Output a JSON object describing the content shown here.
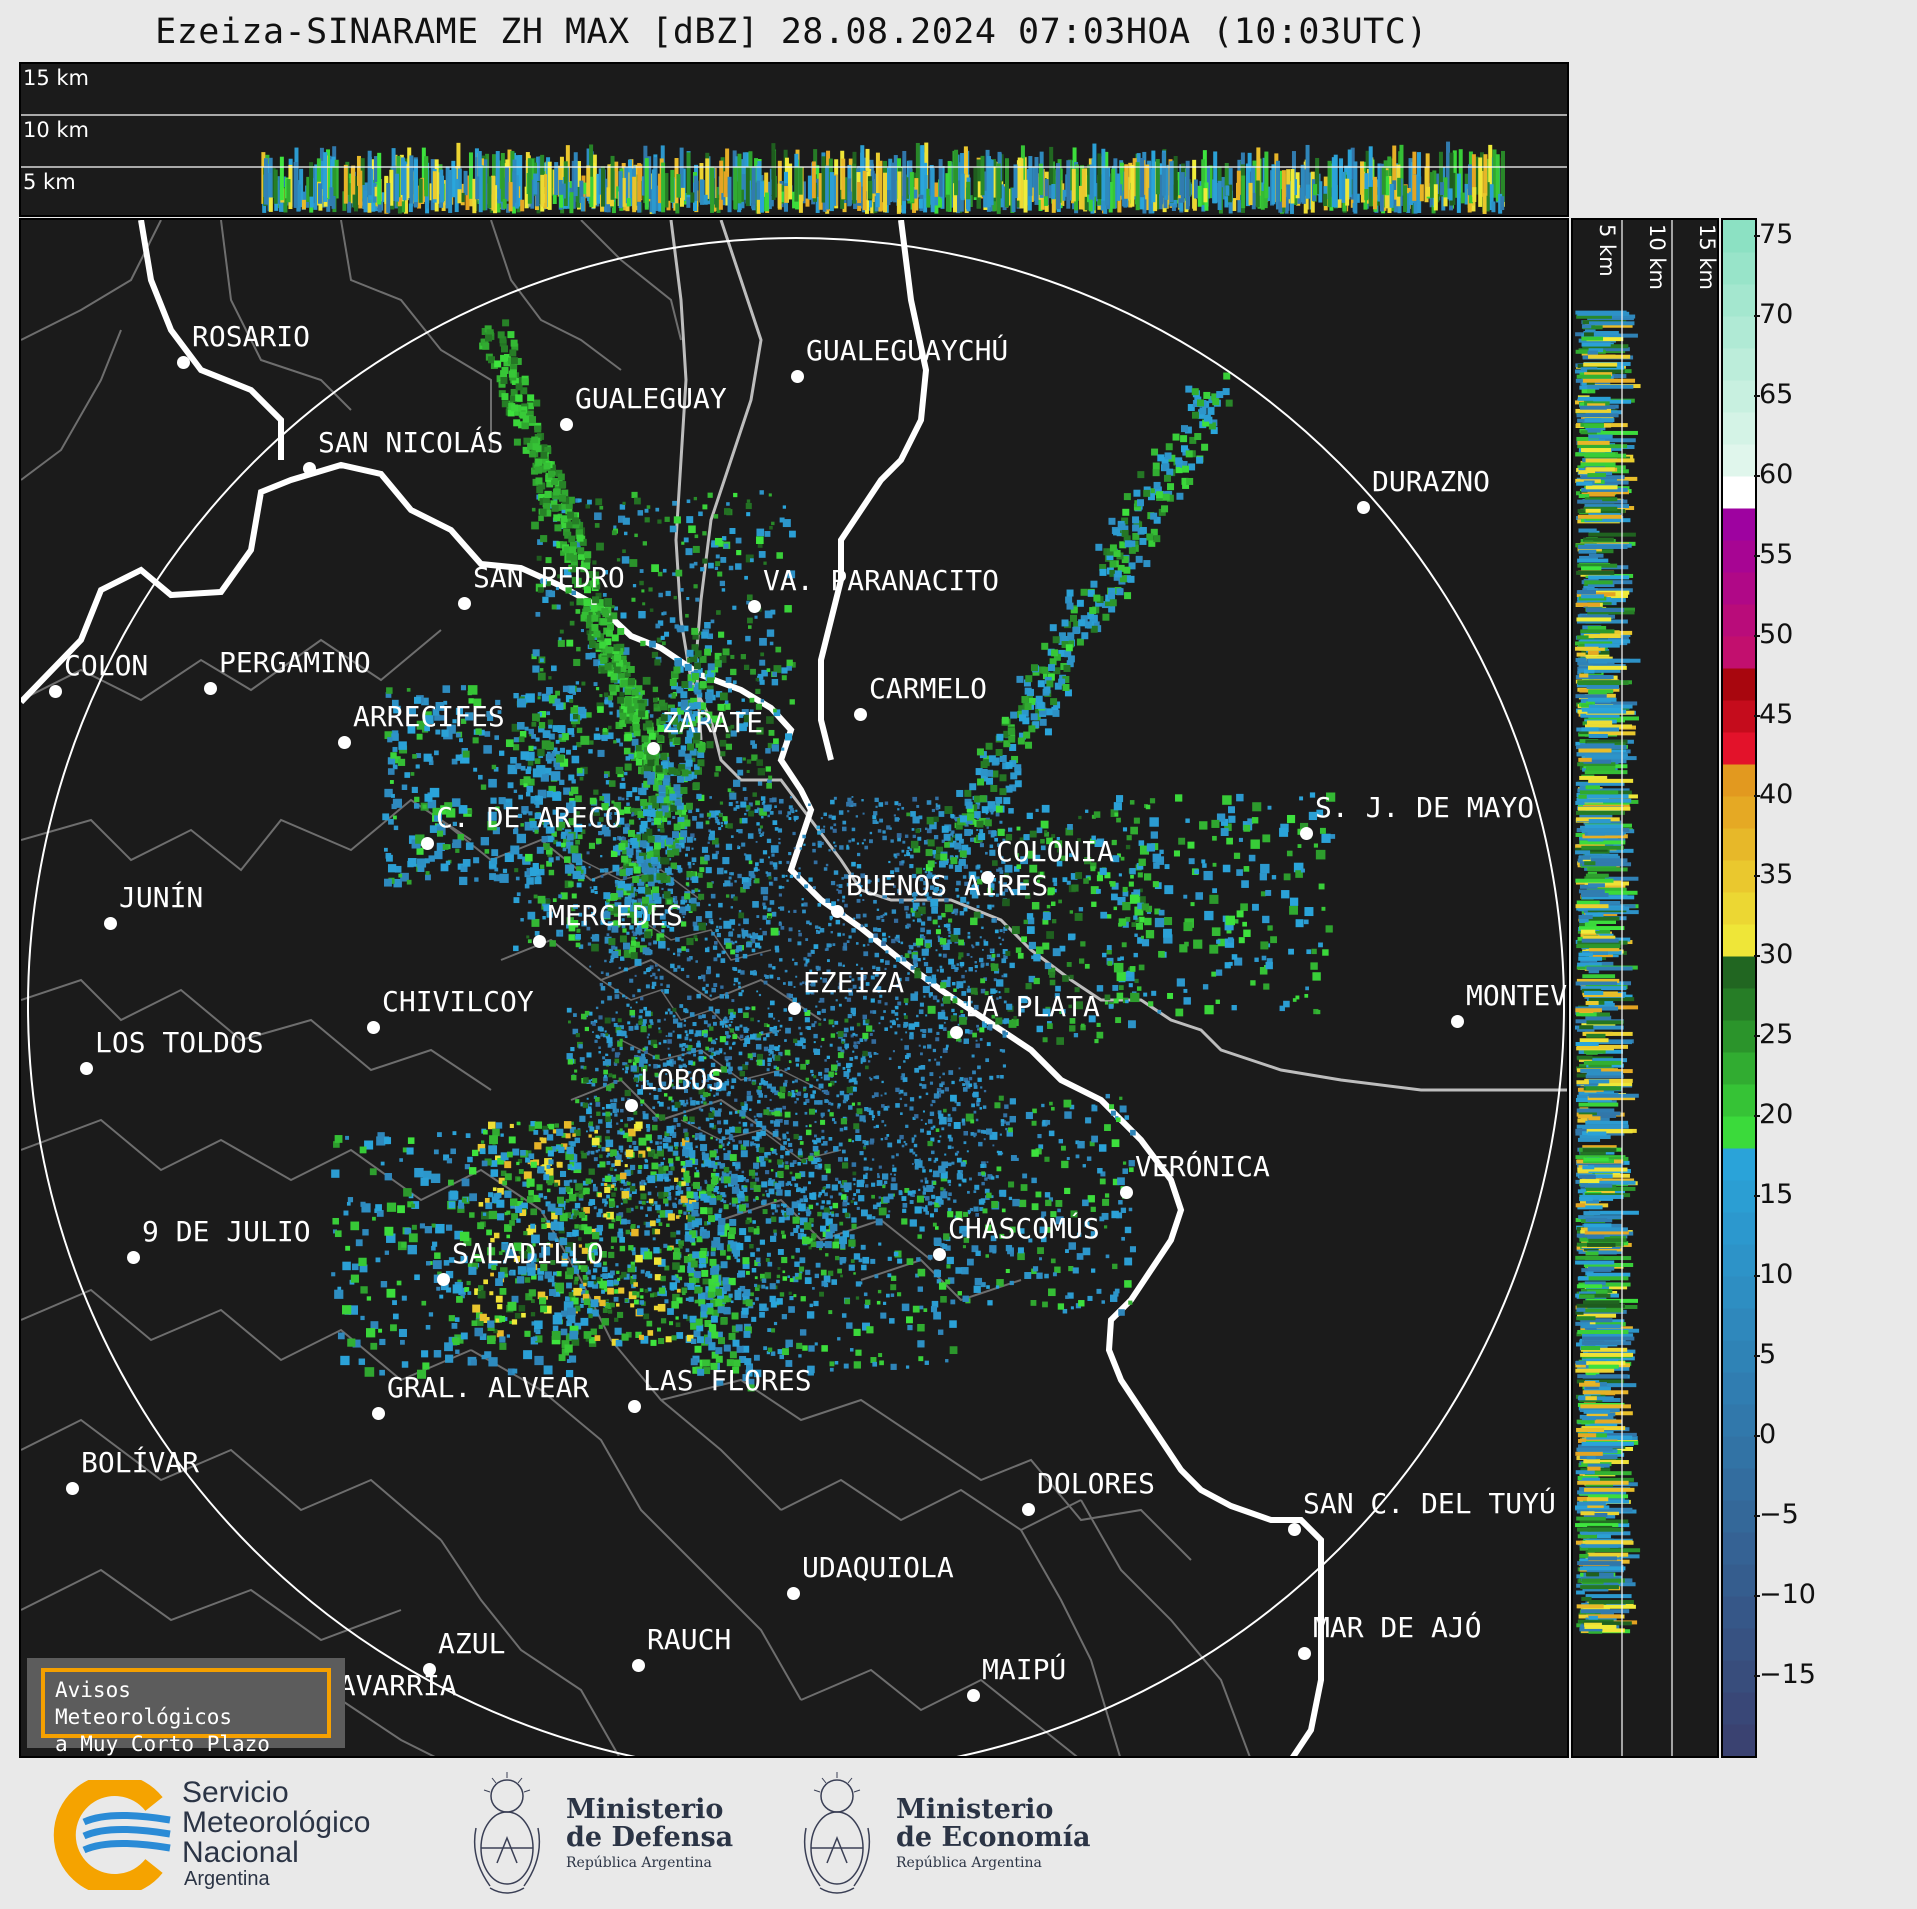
{
  "title": "Ezeiza-SINARAME ZH MAX [dBZ] 28.08.2024 07:03HOA (10:03UTC)",
  "height_labels": [
    "15 km",
    "10 km",
    "5 km"
  ],
  "side_height_labels": [
    "5 km",
    "10 km",
    "15 km"
  ],
  "cities": [
    {
      "name": "ROSARIO"
    },
    {
      "name": "GUALEGUAYCHÚ"
    },
    {
      "name": "GUALEGUAY"
    },
    {
      "name": "SAN NICOLÁS"
    },
    {
      "name": "DURAZNO"
    },
    {
      "name": "SAN PEDRO"
    },
    {
      "name": "VA. PARANACITO"
    },
    {
      "name": "COLON"
    },
    {
      "name": "PERGAMINO"
    },
    {
      "name": "CARMELO"
    },
    {
      "name": "ARRECIFES"
    },
    {
      "name": "ZÁRATE"
    },
    {
      "name": "S. J. DE MAYO"
    },
    {
      "name": "C. DE ARECO"
    },
    {
      "name": "COLONIA"
    },
    {
      "name": "BUENOS AIRES"
    },
    {
      "name": "JUNÍN"
    },
    {
      "name": "MERCEDES"
    },
    {
      "name": "EZEIZA"
    },
    {
      "name": "MONTEVIDEO"
    },
    {
      "name": "CHIVILCOY"
    },
    {
      "name": "LA PLATA"
    },
    {
      "name": "LOS TOLDOS"
    },
    {
      "name": "LOBOS"
    },
    {
      "name": "VERÓNICA"
    },
    {
      "name": "9 DE JULIO"
    },
    {
      "name": "CHASCOMÚS"
    },
    {
      "name": "SALADILLO"
    },
    {
      "name": "GRAL. ALVEAR"
    },
    {
      "name": "LAS FLORES"
    },
    {
      "name": "BOLÍVAR"
    },
    {
      "name": "DOLORES"
    },
    {
      "name": "SAN C. DEL TUYÚ"
    },
    {
      "name": "UDAQUIOLA"
    },
    {
      "name": "MAR DE AJÓ"
    },
    {
      "name": "AZUL"
    },
    {
      "name": "RAUCH"
    },
    {
      "name": "OLAVARRÍA"
    },
    {
      "name": "MAIPÚ"
    }
  ],
  "colorbar": {
    "unit": "dBZ",
    "ticks": [
      "75",
      "70",
      "65",
      "60",
      "55",
      "50",
      "45",
      "40",
      "35",
      "30",
      "25",
      "20",
      "15",
      "10",
      "5",
      "0",
      "−5",
      "−10",
      "−15"
    ],
    "min": -20,
    "max": 76,
    "bands": [
      {
        "from": -20,
        "to": 18,
        "color_low": "#3a3f6e",
        "color_high": "#2aa6dc"
      },
      {
        "from": 18,
        "to": 30,
        "color_low": "#3ee63e",
        "color_high": "#1e5a1e"
      },
      {
        "from": 30,
        "to": 43,
        "color_low": "#f0ee3a",
        "color_high": "#e08a1a"
      },
      {
        "from": 43,
        "to": 49,
        "color_low": "#e3122a",
        "color_high": "#8a0000"
      },
      {
        "from": 49,
        "to": 58,
        "color_low": "#c20f6e",
        "color_high": "#9a00a6"
      },
      {
        "from": 58,
        "to": 60,
        "color_low": "#ffffff",
        "color_high": "#ffffff"
      },
      {
        "from": 60,
        "to": 76,
        "color_low": "#e6f7ef",
        "color_high": "#86e0c0"
      }
    ]
  },
  "alert": {
    "line1": "Avisos Meteorológicos",
    "line2": "a Muy Corto Plazo"
  },
  "footer": {
    "smn": {
      "line1": "Servicio",
      "line2": "Meteorológico",
      "line3": "Nacional",
      "line4": "Argentina"
    },
    "defensa": {
      "line1": "Ministerio",
      "line2": "de Defensa",
      "line3": "República Argentina"
    },
    "economia": {
      "line1": "Ministerio",
      "line2": "de Economía",
      "line3": "República Argentina"
    }
  },
  "colors": {
    "background": "#1b1b1b",
    "frame": "#e9e9e9",
    "alert_border": "#f5a000",
    "smn_orange": "#f5a300",
    "smn_blue": "#2a8bd6"
  }
}
